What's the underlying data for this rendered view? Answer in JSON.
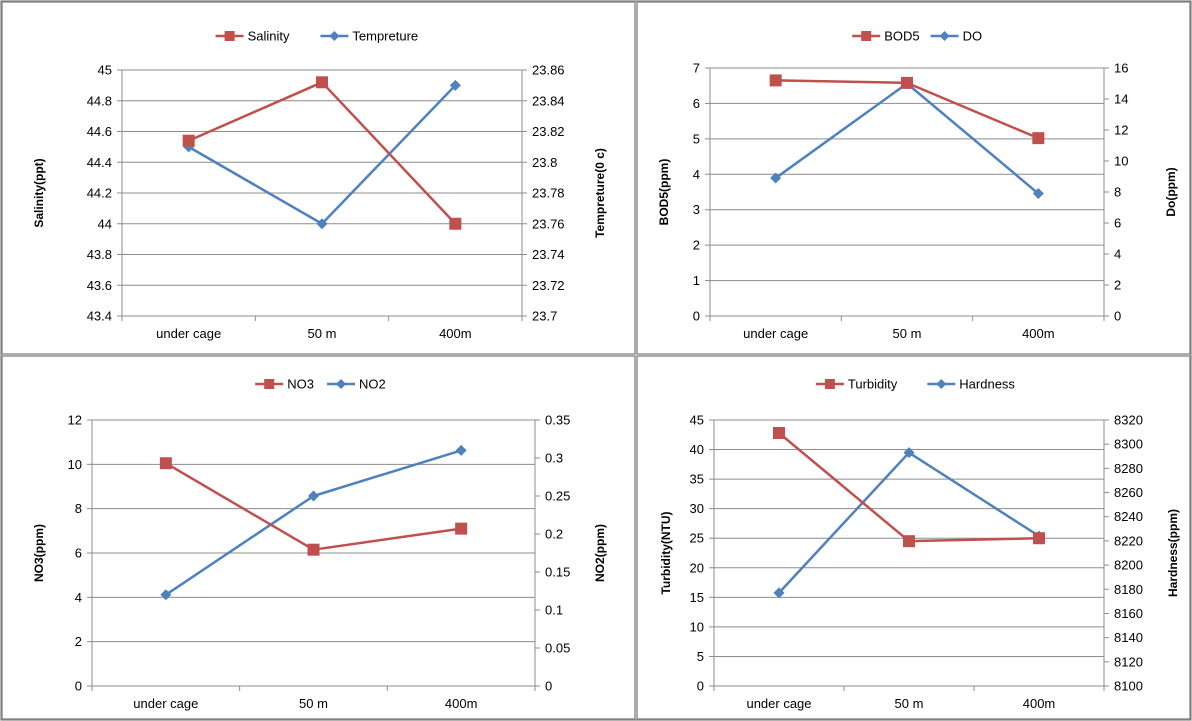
{
  "chart_data": [
    {
      "type": "line",
      "categories": [
        "under cage",
        "50 m",
        "400m"
      ],
      "series": [
        {
          "name": "Salinity",
          "axis": "left",
          "marker": "square",
          "color": "#C0504D",
          "values": [
            44.54,
            44.92,
            44.0
          ]
        },
        {
          "name": "Tempreture",
          "axis": "right",
          "marker": "diamond",
          "color": "#4F81BD",
          "values": [
            23.81,
            23.76,
            23.85
          ]
        }
      ],
      "ylabel": "Salinity(ppt)",
      "y2label": "Tempreture(0 c)",
      "ylim": [
        43.4,
        45
      ],
      "yticks": [
        "43.4",
        "43.6",
        "43.8",
        "44",
        "44.2",
        "44.4",
        "44.6",
        "44.8",
        "45"
      ],
      "y2lim": [
        23.7,
        23.86
      ],
      "y2ticks": [
        "23.7",
        "23.72",
        "23.74",
        "23.76",
        "23.78",
        "23.8",
        "23.82",
        "23.84",
        "23.86"
      ],
      "legend": "top",
      "grid": true
    },
    {
      "type": "line",
      "categories": [
        "under cage",
        "50 m",
        "400m"
      ],
      "series": [
        {
          "name": "BOD5",
          "axis": "left",
          "marker": "square",
          "color": "#C0504D",
          "values": [
            6.65,
            6.58,
            5.02
          ]
        },
        {
          "name": "DO",
          "axis": "right",
          "marker": "diamond",
          "color": "#4F81BD",
          "values": [
            8.9,
            15.0,
            7.9
          ]
        }
      ],
      "ylabel": "BOD5(ppm)",
      "y2label": "Do(ppm)",
      "ylim": [
        0,
        7
      ],
      "yticks": [
        "0",
        "1",
        "2",
        "3",
        "4",
        "5",
        "6",
        "7"
      ],
      "y2lim": [
        0,
        16
      ],
      "y2ticks": [
        "0",
        "2",
        "4",
        "6",
        "8",
        "10",
        "12",
        "14",
        "16"
      ],
      "legend": "top",
      "grid": true
    },
    {
      "type": "line",
      "categories": [
        "under cage",
        "50 m",
        "400m"
      ],
      "series": [
        {
          "name": "NO3",
          "axis": "left",
          "marker": "square",
          "color": "#C0504D",
          "values": [
            10.05,
            6.15,
            7.1
          ]
        },
        {
          "name": "NO2",
          "axis": "right",
          "marker": "diamond",
          "color": "#4F81BD",
          "values": [
            0.12,
            0.25,
            0.31
          ]
        }
      ],
      "ylabel": "NO3(ppm)",
      "y2label": "NO2(ppm)",
      "ylim": [
        0,
        12
      ],
      "yticks": [
        "0",
        "2",
        "4",
        "6",
        "8",
        "10",
        "12"
      ],
      "y2lim": [
        0,
        0.35
      ],
      "y2ticks": [
        "0",
        "0.05",
        "0.1",
        "0.15",
        "0.2",
        "0.25",
        "0.3",
        "0.35"
      ],
      "legend": "top",
      "grid": true
    },
    {
      "type": "line",
      "categories": [
        "under cage",
        "50 m",
        "400m"
      ],
      "series": [
        {
          "name": "Turbidity",
          "axis": "left",
          "marker": "square",
          "color": "#C0504D",
          "values": [
            42.8,
            24.5,
            25.0
          ]
        },
        {
          "name": "Hardness",
          "axis": "right",
          "marker": "diamond",
          "color": "#4F81BD",
          "values": [
            8177,
            8293,
            8224
          ]
        }
      ],
      "ylabel": "Turbidity(NTU)",
      "y2label": "Hardness(ppm)",
      "ylim": [
        0,
        45
      ],
      "yticks": [
        "0",
        "5",
        "10",
        "15",
        "20",
        "25",
        "30",
        "35",
        "40",
        "45"
      ],
      "y2lim": [
        8100,
        8320
      ],
      "y2ticks": [
        "8100",
        "8120",
        "8140",
        "8160",
        "8180",
        "8200",
        "8220",
        "8240",
        "8260",
        "8280",
        "8300",
        "8320"
      ],
      "legend": "top",
      "grid": true
    }
  ]
}
